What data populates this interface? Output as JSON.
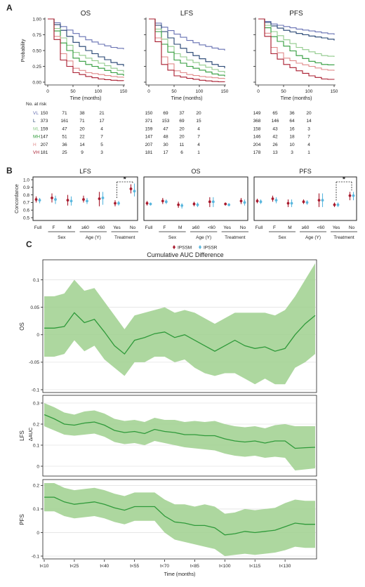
{
  "panel_labels": {
    "a": "A",
    "b": "B",
    "c": "C"
  },
  "colors": {
    "VL": "#6670b2",
    "L": "#1f3f6e",
    "ML": "#8fc98a",
    "MH": "#2f9a3a",
    "H": "#e08a8a",
    "VH": "#a81b2e",
    "IPSSM": "#a81b2e",
    "IPSSR": "#5ab7de",
    "band": "#9fd08e",
    "line": "#2f9a3a"
  },
  "km": {
    "ylabel": "Probability",
    "xlabel": "Time (months)",
    "yticks": [
      "0.00",
      "0.25",
      "0.50",
      "0.75",
      "1.00"
    ],
    "xticks": [
      "0",
      "50",
      "100",
      "150"
    ],
    "risk_title": "No. at risk",
    "groups": [
      "VL",
      "L",
      "ML",
      "MH",
      "H",
      "VH"
    ],
    "panels": [
      {
        "title": "OS",
        "risk": [
          [
            150,
            71,
            38,
            21
          ],
          [
            373,
            161,
            71,
            17
          ],
          [
            159,
            47,
            20,
            4
          ],
          [
            147,
            51,
            22,
            7
          ],
          [
            207,
            36,
            14,
            5
          ],
          [
            181,
            25,
            9,
            3
          ]
        ]
      },
      {
        "title": "LFS",
        "risk": [
          [
            150,
            69,
            37,
            20
          ],
          [
            371,
            153,
            69,
            15
          ],
          [
            159,
            47,
            20,
            4
          ],
          [
            147,
            48,
            20,
            7
          ],
          [
            207,
            30,
            11,
            4
          ],
          [
            181,
            17,
            6,
            1
          ]
        ]
      },
      {
        "title": "PFS",
        "risk": [
          [
            149,
            65,
            36,
            20
          ],
          [
            368,
            146,
            64,
            14
          ],
          [
            158,
            43,
            16,
            3
          ],
          [
            146,
            42,
            18,
            7
          ],
          [
            204,
            26,
            10,
            4
          ],
          [
            178,
            13,
            3,
            1
          ]
        ]
      }
    ]
  },
  "concordance": {
    "ylabel": "Concordance",
    "yticks": [
      "0.5",
      "0.6",
      "0.7",
      "0.8",
      "0.9",
      "1.0"
    ],
    "categories": [
      "Full",
      "F",
      "M",
      "≥60",
      "<60",
      "Yes",
      "No"
    ],
    "groups": [
      "Sex",
      "Age (Y)",
      "Treatment"
    ],
    "star": "*",
    "legend": [
      "IPSSM",
      "IPSSR"
    ],
    "panels": [
      {
        "title": "LFS",
        "sig": true
      },
      {
        "title": "OS",
        "sig": false
      },
      {
        "title": "PFS",
        "sig": true
      }
    ]
  },
  "auc": {
    "title": "Cumulative AUC Difference",
    "xlabel": "Time (months)",
    "xticks": [
      "t<10",
      "t<25",
      "t<40",
      "t<55",
      "t<70",
      "t<85",
      "t<100",
      "t<115",
      "t<130"
    ],
    "panels": [
      {
        "label": "OS",
        "ylabel": "",
        "yticks": [
          "-0.1",
          "-0.05",
          "0",
          "0.05",
          "0.1"
        ]
      },
      {
        "label": "LFS",
        "ylabel": "ΔAUC",
        "yticks": [
          "0",
          "0.1",
          "0.2",
          "0.3"
        ]
      },
      {
        "label": "PFS",
        "ylabel": "",
        "yticks": [
          "-0.1",
          "0",
          "0.1",
          "0.2"
        ]
      }
    ]
  },
  "chart_data": [
    {
      "type": "line",
      "title": "OS",
      "xlabel": "Time (months)",
      "ylabel": "Probability",
      "x": [
        0,
        25,
        50,
        75,
        100,
        125,
        150
      ],
      "xlim": [
        0,
        150
      ],
      "ylim": [
        0,
        1
      ],
      "series": [
        {
          "name": "VL",
          "values": [
            1.0,
            0.88,
            0.77,
            0.67,
            0.6,
            0.55,
            0.52
          ]
        },
        {
          "name": "L",
          "values": [
            1.0,
            0.82,
            0.63,
            0.5,
            0.4,
            0.31,
            0.25
          ]
        },
        {
          "name": "ML",
          "values": [
            1.0,
            0.7,
            0.47,
            0.38,
            0.3,
            0.22,
            0.15
          ]
        },
        {
          "name": "MH",
          "values": [
            1.0,
            0.62,
            0.38,
            0.28,
            0.22,
            0.15,
            0.1
          ]
        },
        {
          "name": "H",
          "values": [
            1.0,
            0.45,
            0.22,
            0.15,
            0.12,
            0.09,
            0.07
          ]
        },
        {
          "name": "VH",
          "values": [
            1.0,
            0.35,
            0.15,
            0.09,
            0.05,
            0.03,
            0.02
          ]
        }
      ]
    },
    {
      "type": "line",
      "title": "LFS",
      "xlabel": "Time (months)",
      "ylabel": "Probability",
      "x": [
        0,
        25,
        50,
        75,
        100,
        125,
        150
      ],
      "xlim": [
        0,
        150
      ],
      "ylim": [
        0,
        1
      ],
      "series": [
        {
          "name": "VL",
          "values": [
            1.0,
            0.87,
            0.76,
            0.66,
            0.59,
            0.54,
            0.5
          ]
        },
        {
          "name": "L",
          "values": [
            1.0,
            0.8,
            0.6,
            0.47,
            0.37,
            0.28,
            0.22
          ]
        },
        {
          "name": "ML",
          "values": [
            1.0,
            0.68,
            0.45,
            0.35,
            0.27,
            0.2,
            0.14
          ]
        },
        {
          "name": "MH",
          "values": [
            1.0,
            0.6,
            0.35,
            0.25,
            0.19,
            0.13,
            0.09
          ]
        },
        {
          "name": "H",
          "values": [
            1.0,
            0.4,
            0.18,
            0.12,
            0.09,
            0.07,
            0.05
          ]
        },
        {
          "name": "VH",
          "values": [
            1.0,
            0.28,
            0.1,
            0.06,
            0.03,
            0.01,
            0.0
          ]
        }
      ]
    },
    {
      "type": "line",
      "title": "PFS",
      "xlabel": "Time (months)",
      "ylabel": "Probability",
      "x": [
        0,
        25,
        50,
        75,
        100,
        125,
        150
      ],
      "xlim": [
        0,
        150
      ],
      "ylim": [
        0,
        1
      ],
      "series": [
        {
          "name": "VL",
          "values": [
            1.0,
            0.92,
            0.88,
            0.84,
            0.81,
            0.78,
            0.75
          ]
        },
        {
          "name": "L",
          "values": [
            1.0,
            0.89,
            0.82,
            0.77,
            0.73,
            0.7,
            0.66
          ]
        },
        {
          "name": "ML",
          "values": [
            1.0,
            0.8,
            0.67,
            0.55,
            0.48,
            0.42,
            0.4
          ]
        },
        {
          "name": "MH",
          "values": [
            1.0,
            0.72,
            0.57,
            0.42,
            0.33,
            0.28,
            0.27
          ]
        },
        {
          "name": "H",
          "values": [
            1.0,
            0.55,
            0.38,
            0.3,
            0.25,
            0.2,
            0.18
          ]
        },
        {
          "name": "VH",
          "values": [
            1.0,
            0.45,
            0.28,
            0.18,
            0.1,
            0.05,
            0.04
          ]
        }
      ]
    },
    {
      "type": "scatter",
      "title": "LFS",
      "ylabel": "Concordance",
      "categories": [
        "Full",
        "F",
        "M",
        "≥60",
        "<60",
        "Yes",
        "No"
      ],
      "ylim": [
        0.5,
        1.0
      ],
      "series": [
        {
          "name": "IPSSM",
          "values": [
            0.74,
            0.76,
            0.73,
            0.74,
            0.75,
            0.69,
            0.88
          ],
          "lower": [
            0.7,
            0.7,
            0.66,
            0.7,
            0.65,
            0.65,
            0.82
          ],
          "upper": [
            0.78,
            0.82,
            0.8,
            0.79,
            0.84,
            0.73,
            0.94
          ]
        },
        {
          "name": "IPSSR",
          "values": [
            0.73,
            0.74,
            0.72,
            0.72,
            0.76,
            0.69,
            0.85
          ],
          "lower": [
            0.69,
            0.68,
            0.66,
            0.68,
            0.67,
            0.66,
            0.78
          ],
          "upper": [
            0.76,
            0.79,
            0.78,
            0.76,
            0.84,
            0.72,
            0.95
          ]
        }
      ]
    },
    {
      "type": "scatter",
      "title": "OS",
      "ylabel": "Concordance",
      "categories": [
        "Full",
        "F",
        "M",
        "≥60",
        "<60",
        "Yes",
        "No"
      ],
      "ylim": [
        0.5,
        1.0
      ],
      "series": [
        {
          "name": "IPSSM",
          "values": [
            0.69,
            0.72,
            0.67,
            0.68,
            0.71,
            0.68,
            0.72
          ],
          "lower": [
            0.66,
            0.68,
            0.63,
            0.65,
            0.64,
            0.66,
            0.68
          ],
          "upper": [
            0.72,
            0.76,
            0.71,
            0.71,
            0.77,
            0.7,
            0.76
          ]
        },
        {
          "name": "IPSSR",
          "values": [
            0.68,
            0.71,
            0.66,
            0.67,
            0.71,
            0.67,
            0.7
          ],
          "lower": [
            0.66,
            0.68,
            0.62,
            0.64,
            0.64,
            0.65,
            0.66
          ],
          "upper": [
            0.7,
            0.74,
            0.69,
            0.7,
            0.77,
            0.69,
            0.74
          ]
        }
      ]
    },
    {
      "type": "scatter",
      "title": "PFS",
      "ylabel": "Concordance",
      "categories": [
        "Full",
        "F",
        "M",
        "≥60",
        "<60",
        "Yes",
        "No"
      ],
      "ylim": [
        0.5,
        1.0
      ],
      "series": [
        {
          "name": "IPSSM",
          "values": [
            0.72,
            0.75,
            0.69,
            0.71,
            0.73,
            0.67,
            0.79
          ],
          "lower": [
            0.69,
            0.71,
            0.64,
            0.68,
            0.64,
            0.64,
            0.73
          ],
          "upper": [
            0.75,
            0.79,
            0.74,
            0.74,
            0.82,
            0.7,
            0.84
          ]
        },
        {
          "name": "IPSSR",
          "values": [
            0.71,
            0.73,
            0.69,
            0.7,
            0.73,
            0.67,
            0.79
          ],
          "lower": [
            0.68,
            0.69,
            0.64,
            0.67,
            0.64,
            0.64,
            0.73
          ],
          "upper": [
            0.74,
            0.77,
            0.74,
            0.73,
            0.82,
            0.7,
            0.84
          ]
        }
      ]
    },
    {
      "type": "area",
      "title": "OS",
      "xlabel": "Time (months)",
      "categories": [
        "t<10",
        "t<15",
        "t<20",
        "t<25",
        "t<30",
        "t<35",
        "t<40",
        "t<45",
        "t<50",
        "t<55",
        "t<60",
        "t<65",
        "t<70",
        "t<75",
        "t<80",
        "t<85",
        "t<90",
        "t<95",
        "t<100",
        "t<105",
        "t<110",
        "t<115",
        "t<120",
        "t<125",
        "t<130",
        "t<135",
        "t<140",
        "t<145"
      ],
      "ylim": [
        -0.1,
        0.13
      ],
      "series": [
        {
          "name": "",
          "values": [
            0.012,
            0.012,
            0.015,
            0.04,
            0.022,
            0.028,
            0.005,
            -0.02,
            -0.035,
            -0.01,
            -0.005,
            0.002,
            0.005,
            -0.005,
            0.0,
            -0.01,
            -0.02,
            -0.03,
            -0.02,
            -0.01,
            -0.02,
            -0.025,
            -0.022,
            -0.03,
            -0.025,
            0.0,
            0.02,
            0.035
          ]
        },
        {
          "name": "lower",
          "values": [
            -0.04,
            -0.04,
            -0.035,
            -0.01,
            -0.03,
            -0.02,
            -0.045,
            -0.06,
            -0.075,
            -0.05,
            -0.05,
            -0.04,
            -0.04,
            -0.05,
            -0.045,
            -0.06,
            -0.07,
            -0.075,
            -0.07,
            -0.07,
            -0.08,
            -0.09,
            -0.08,
            -0.09,
            -0.09,
            -0.06,
            -0.05,
            -0.035
          ]
        },
        {
          "name": "upper",
          "values": [
            0.07,
            0.07,
            0.075,
            0.1,
            0.08,
            0.085,
            0.06,
            0.035,
            0.01,
            0.035,
            0.04,
            0.045,
            0.05,
            0.04,
            0.045,
            0.04,
            0.03,
            0.02,
            0.03,
            0.04,
            0.04,
            0.04,
            0.04,
            0.035,
            0.045,
            0.07,
            0.1,
            0.13
          ]
        }
      ]
    },
    {
      "type": "area",
      "title": "LFS",
      "xlabel": "Time (months)",
      "ylabel": "ΔAUC",
      "categories": [
        "t<10",
        "t<15",
        "t<20",
        "t<25",
        "t<30",
        "t<35",
        "t<40",
        "t<45",
        "t<50",
        "t<55",
        "t<60",
        "t<65",
        "t<70",
        "t<75",
        "t<80",
        "t<85",
        "t<90",
        "t<95",
        "t<100",
        "t<105",
        "t<110",
        "t<115",
        "t<120",
        "t<125",
        "t<130",
        "t<135",
        "t<140",
        "t<145"
      ],
      "ylim": [
        -0.03,
        0.32
      ],
      "series": [
        {
          "name": "",
          "values": [
            0.245,
            0.225,
            0.2,
            0.195,
            0.205,
            0.21,
            0.195,
            0.17,
            0.16,
            0.165,
            0.155,
            0.175,
            0.165,
            0.16,
            0.15,
            0.15,
            0.145,
            0.145,
            0.13,
            0.12,
            0.115,
            0.12,
            0.11,
            0.12,
            0.12,
            0.085,
            0.088,
            0.09
          ]
        },
        {
          "name": "lower",
          "values": [
            0.19,
            0.17,
            0.15,
            0.145,
            0.15,
            0.155,
            0.14,
            0.115,
            0.105,
            0.11,
            0.1,
            0.12,
            0.11,
            0.1,
            0.09,
            0.085,
            0.08,
            0.075,
            0.06,
            0.05,
            0.045,
            0.05,
            0.04,
            0.045,
            0.04,
            -0.02,
            -0.015,
            -0.01
          ]
        },
        {
          "name": "upper",
          "values": [
            0.3,
            0.28,
            0.255,
            0.245,
            0.26,
            0.265,
            0.25,
            0.225,
            0.215,
            0.22,
            0.21,
            0.23,
            0.22,
            0.22,
            0.21,
            0.215,
            0.21,
            0.215,
            0.2,
            0.19,
            0.185,
            0.19,
            0.18,
            0.195,
            0.2,
            0.19,
            0.19,
            0.19
          ]
        }
      ]
    },
    {
      "type": "area",
      "title": "PFS",
      "xlabel": "Time (months)",
      "categories": [
        "t<10",
        "t<15",
        "t<20",
        "t<25",
        "t<30",
        "t<35",
        "t<40",
        "t<45",
        "t<50",
        "t<55",
        "t<60",
        "t<65",
        "t<70",
        "t<75",
        "t<80",
        "t<85",
        "t<90",
        "t<95",
        "t<100",
        "t<105",
        "t<110",
        "t<115",
        "t<120",
        "t<125",
        "t<130",
        "t<135",
        "t<140",
        "t<145"
      ],
      "ylim": [
        -0.1,
        0.21
      ],
      "series": [
        {
          "name": "",
          "values": [
            0.15,
            0.15,
            0.13,
            0.12,
            0.125,
            0.13,
            0.12,
            0.105,
            0.095,
            0.11,
            0.11,
            0.11,
            0.07,
            0.045,
            0.04,
            0.03,
            0.03,
            0.02,
            -0.01,
            -0.005,
            0.005,
            0.0,
            0.005,
            0.01,
            0.025,
            0.04,
            0.035,
            0.035
          ]
        },
        {
          "name": "lower",
          "values": [
            0.09,
            0.09,
            0.07,
            0.06,
            0.065,
            0.07,
            0.06,
            0.045,
            0.035,
            0.05,
            0.05,
            0.05,
            0.0,
            -0.03,
            -0.04,
            -0.05,
            -0.06,
            -0.07,
            -0.1,
            -0.095,
            -0.09,
            -0.095,
            -0.09,
            -0.085,
            -0.075,
            -0.06,
            -0.065,
            -0.065
          ]
        },
        {
          "name": "upper",
          "values": [
            0.21,
            0.21,
            0.19,
            0.18,
            0.185,
            0.19,
            0.18,
            0.165,
            0.155,
            0.17,
            0.17,
            0.17,
            0.14,
            0.12,
            0.12,
            0.11,
            0.12,
            0.11,
            0.08,
            0.085,
            0.1,
            0.095,
            0.1,
            0.105,
            0.125,
            0.14,
            0.135,
            0.135
          ]
        }
      ]
    }
  ]
}
